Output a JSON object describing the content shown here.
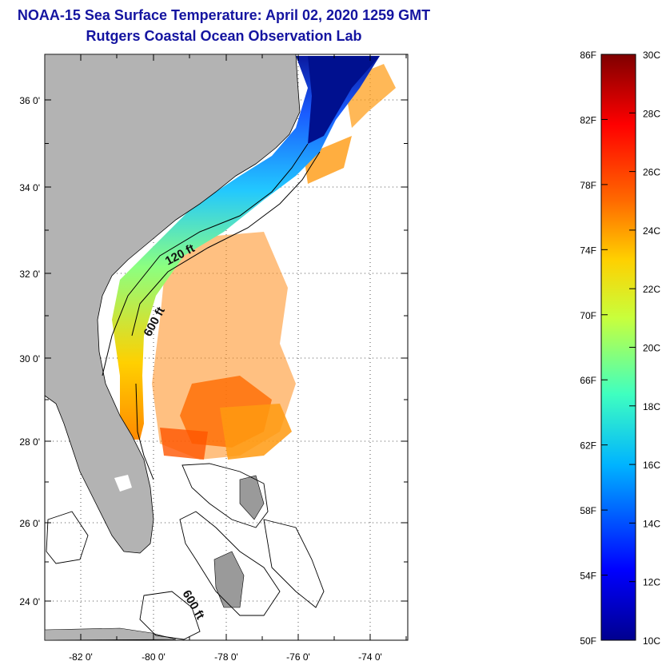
{
  "header": {
    "title": "NOAA-15 Sea Surface Temperature:  April 02, 2020 1259 GMT",
    "subtitle": "Rutgers Coastal Ocean Observation Lab"
  },
  "map": {
    "lat_labels": [
      "36 0'",
      "34 0'",
      "32 0'",
      "30 0'",
      "28 0'",
      "26 0'",
      "24 0'"
    ],
    "lon_labels": [
      "-82 0'",
      "-80 0'",
      "-78 0'",
      "-76 0'",
      "-74 0'"
    ],
    "contour_labels": [
      "120 ft",
      "600 ft",
      "600 ft"
    ]
  },
  "colorbar": {
    "f_labels": [
      "86F",
      "82F",
      "78F",
      "74F",
      "70F",
      "66F",
      "62F",
      "58F",
      "54F",
      "50F"
    ],
    "c_labels": [
      "30C",
      "28C",
      "26C",
      "24C",
      "22C",
      "20C",
      "18C",
      "16C",
      "14C",
      "12C",
      "10C"
    ],
    "colors": [
      "#00008f",
      "#0000ff",
      "#00b4ff",
      "#3fffc0",
      "#c8ff3c",
      "#ffd000",
      "#ff6a00",
      "#ff0000",
      "#7f0000"
    ]
  }
}
